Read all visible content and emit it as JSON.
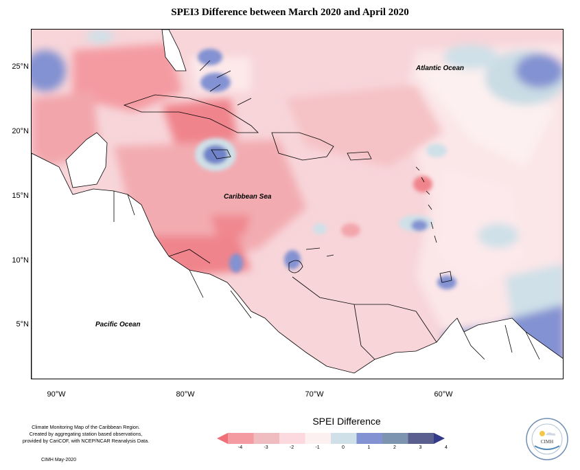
{
  "title": "SPEI3 Difference between March 2020 and April 2020",
  "map": {
    "lat_labels": [
      "25°N",
      "20°N",
      "15°N",
      "10°N",
      "5°N"
    ],
    "lon_labels": [
      "90°W",
      "80°W",
      "70°W",
      "60°W"
    ],
    "place_labels": {
      "atlantic": "Atlantic Ocean",
      "caribbean": "Caribbean Sea",
      "pacific": "Pacific Ocean"
    }
  },
  "legend": {
    "title": "SPEI Difference",
    "tick_labels": [
      "-4",
      "-3",
      "-2",
      "-1",
      "0",
      "1",
      "2",
      "3",
      "4"
    ],
    "colors": [
      "#f0707a",
      "#f49ba2",
      "#efbcc0",
      "#fbd9df",
      "#fdf0f0",
      "#cfe0e8",
      "#8392d2",
      "#7c94b0",
      "#5b5f8f",
      "#343a8a"
    ]
  },
  "credits": {
    "lines": [
      "Climate Monitoring Map of the Caribbean Region.",
      "Created by aggregating station based observations,",
      "provided by CariCOF, with NCEP/NCAR Reanalysis Data."
    ],
    "date": "CIMH May-2020"
  },
  "logo": {
    "text": "CIMH"
  }
}
